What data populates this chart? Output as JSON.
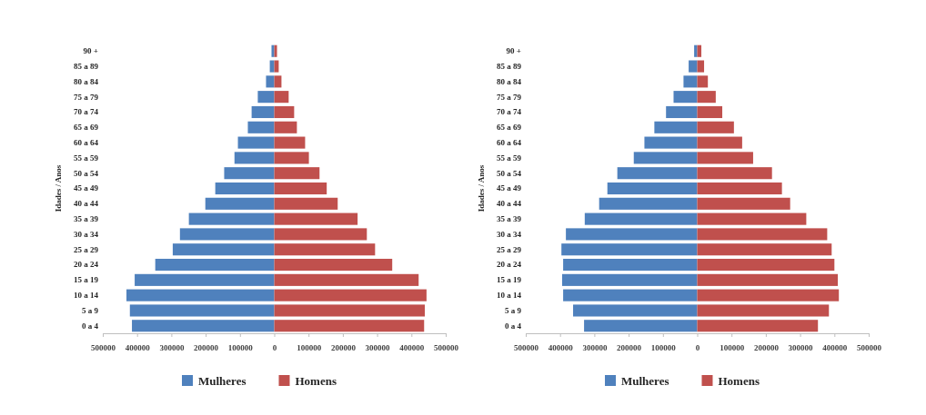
{
  "chart_data": [
    {
      "type": "bar",
      "orientation": "horizontal",
      "ylabel": "Idades / Anos",
      "categories": [
        "90 +",
        "85 a 89",
        "80 a 84",
        "75 a 79",
        "70 a 74",
        "65 a 69",
        "60 a 64",
        "55 a 59",
        "50 a 54",
        "45 a 49",
        "40 a 44",
        "35 a 39",
        "30 a 34",
        "25 a 29",
        "20 a 24",
        "15 a 19",
        "10 a 14",
        "5 a 9",
        "0 a 4"
      ],
      "series": [
        {
          "name": "Mulheres",
          "color": "#4f81bd",
          "values": [
            -8000,
            -13000,
            -24000,
            -48000,
            -66000,
            -77000,
            -106000,
            -116000,
            -146000,
            -172000,
            -201000,
            -249000,
            -275000,
            -296000,
            -347000,
            -407000,
            -431000,
            -421000,
            -415000
          ]
        },
        {
          "name": "Homens",
          "color": "#c0504d",
          "values": [
            8000,
            13000,
            21000,
            42000,
            58000,
            66000,
            90000,
            101000,
            132000,
            153000,
            185000,
            243000,
            270000,
            294000,
            344000,
            421000,
            444000,
            439000,
            437000
          ]
        }
      ],
      "xlim": [
        -500000,
        500000
      ],
      "xticks": [
        {
          "value": -500000,
          "label": "500000"
        },
        {
          "value": -400000,
          "label": "400000"
        },
        {
          "value": -300000,
          "label": "300000"
        },
        {
          "value": -200000,
          "label": "200000"
        },
        {
          "value": -100000,
          "label": "100000"
        },
        0,
        100000,
        200000,
        300000,
        400000,
        500000
      ],
      "grid": false,
      "legend": "bottom",
      "stacked": true
    },
    {
      "type": "bar",
      "orientation": "horizontal",
      "ylabel": "Idades / Anos",
      "categories": [
        "90 +",
        "85 a 89",
        "80 a 84",
        "75 a 79",
        "70 a 74",
        "65 a 69",
        "60 a 64",
        "55 a 59",
        "50 a 54",
        "45 a 49",
        "40 a 44",
        "35 a 39",
        "30 a 34",
        "25 a 29",
        "20 a 24",
        "15 a 19",
        "10 a 14",
        "5 a 9",
        "0 a 4"
      ],
      "series": [
        {
          "name": "Mulheres",
          "color": "#4f81bd",
          "values": [
            -9000,
            -25000,
            -40000,
            -69000,
            -91000,
            -125000,
            -154000,
            -185000,
            -233000,
            -262000,
            -286000,
            -328000,
            -383000,
            -396000,
            -391000,
            -394000,
            -391000,
            -362000,
            -330000
          ]
        },
        {
          "name": "Homens",
          "color": "#c0504d",
          "values": [
            12000,
            20000,
            31000,
            54000,
            73000,
            107000,
            131000,
            163000,
            218000,
            247000,
            271000,
            318000,
            379000,
            392000,
            400000,
            410000,
            413000,
            384000,
            352000
          ]
        }
      ],
      "xlim": [
        -500000,
        500000
      ],
      "xticks": [
        {
          "value": -500000,
          "label": "500000"
        },
        {
          "value": -400000,
          "label": "400000"
        },
        {
          "value": -300000,
          "label": "300000"
        },
        {
          "value": -200000,
          "label": "200000"
        },
        {
          "value": -100000,
          "label": "100000"
        },
        0,
        100000,
        200000,
        300000,
        400000,
        500000
      ],
      "grid": false,
      "legend": "bottom",
      "stacked": true
    }
  ]
}
